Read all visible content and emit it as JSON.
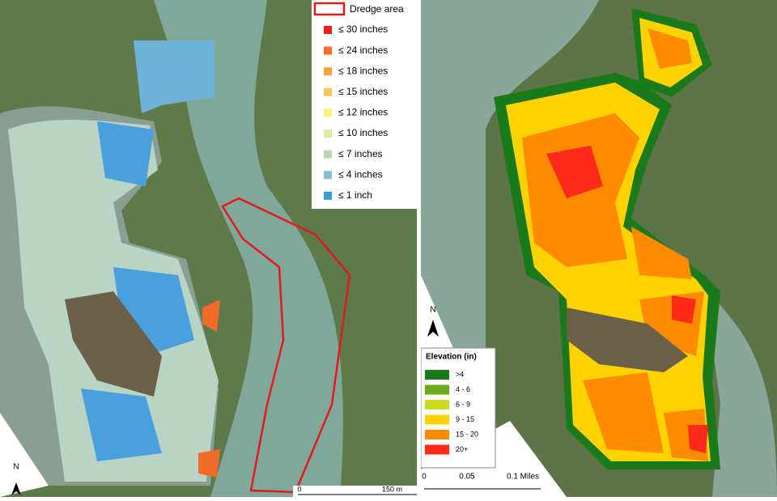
{
  "left_map": {
    "legend": {
      "dredge": {
        "label": "Dredge area",
        "color": "#e31a1c"
      },
      "items": [
        {
          "label": "≤ 30 inches",
          "color": "#e8201c"
        },
        {
          "label": "≤ 24 inches",
          "color": "#f46d22"
        },
        {
          "label": "≤ 18 inches",
          "color": "#f9a03f"
        },
        {
          "label": "≤ 15 inches",
          "color": "#fdc55a"
        },
        {
          "label": "≤ 12 inches",
          "color": "#fbf27a"
        },
        {
          "label": "≤ 10 inches",
          "color": "#dde8a0"
        },
        {
          "label": "≤ 7 inches",
          "color": "#b7d8b0"
        },
        {
          "label": "≤ 4 inches",
          "color": "#86bccb"
        },
        {
          "label": "≤ 1 inch",
          "color": "#3a99d8"
        }
      ]
    },
    "north": "N",
    "scale": {
      "start": "0",
      "end": "150 m"
    }
  },
  "right_map": {
    "legend": {
      "title": "Elevation (in)",
      "items": [
        {
          "label": ">4",
          "color": "#1a7a1a"
        },
        {
          "label": "4 - 6",
          "color": "#6aaa1c"
        },
        {
          "label": "6 - 9",
          "color": "#c8dc20"
        },
        {
          "label": "9 - 15",
          "color": "#ffd200"
        },
        {
          "label": "15 - 20",
          "color": "#ff8c00"
        },
        {
          "label": "20+",
          "color": "#ff2a1a"
        }
      ]
    },
    "north": "N",
    "scale": {
      "start": "0",
      "mid": "0.05",
      "end": "0.1 Miles"
    }
  }
}
